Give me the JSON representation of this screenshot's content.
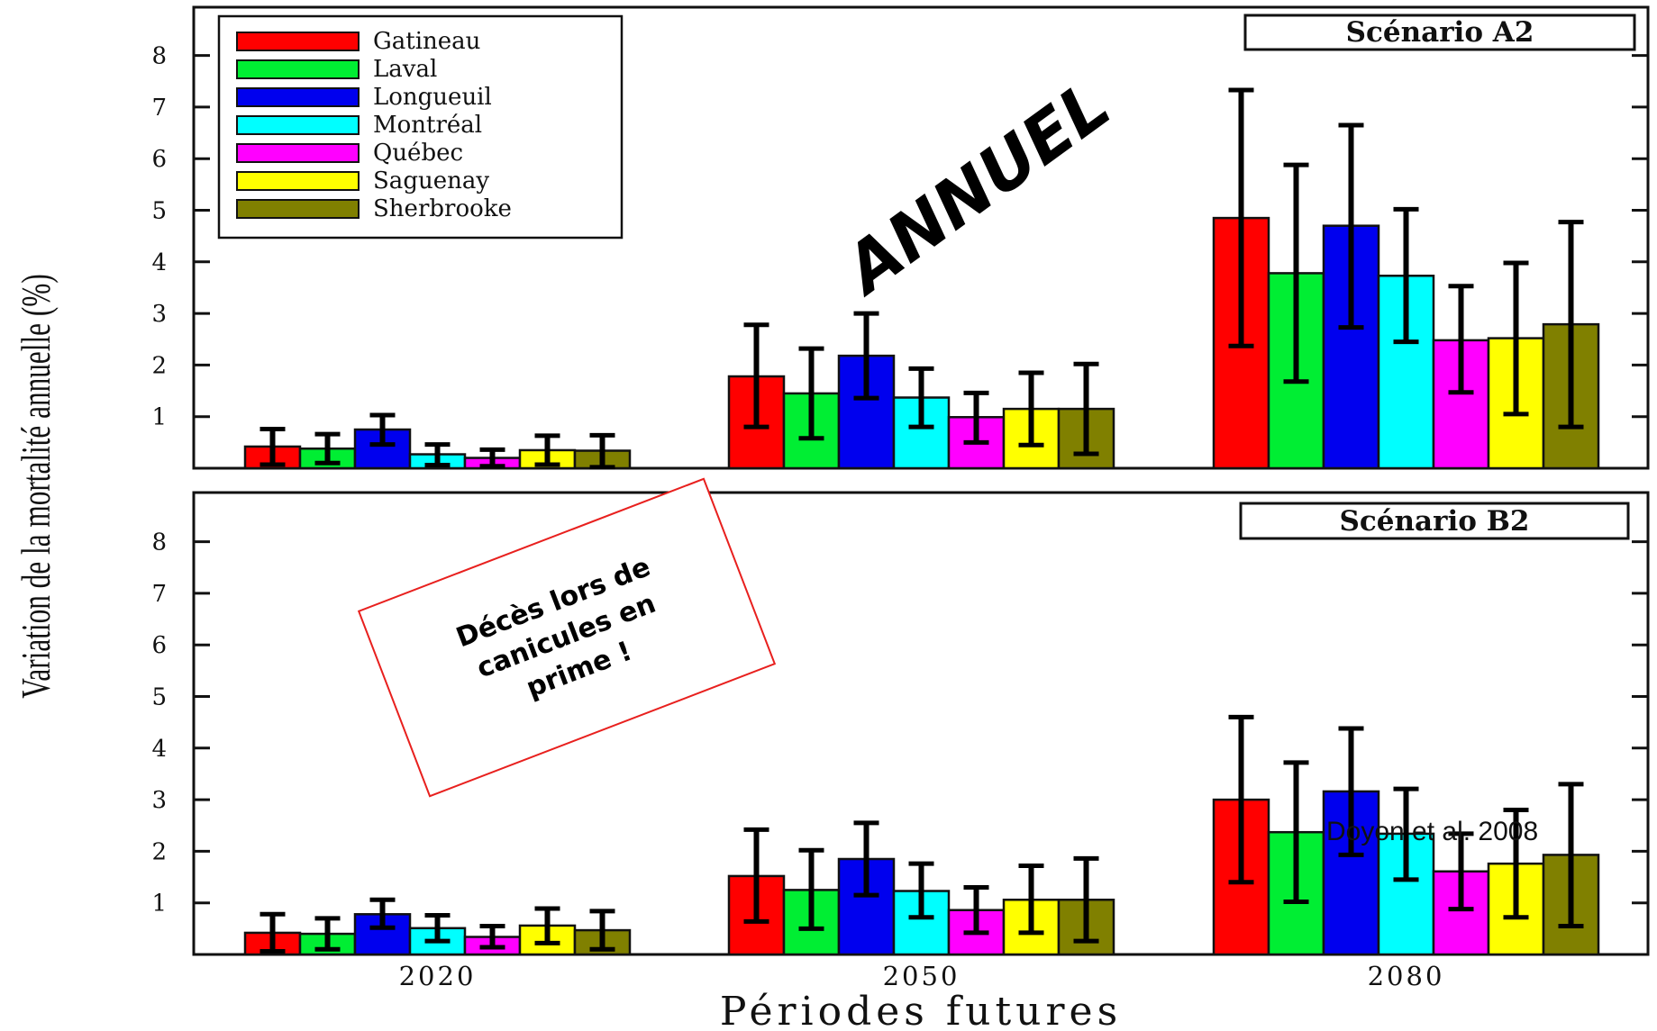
{
  "figure": {
    "ylabel": "Variation de la mortalité annuelle (%)",
    "xlabel": "Périodes futures",
    "overlay_text": "ANNUEL",
    "callout_lines": [
      "Décès lors de",
      "canicules en",
      "prime !"
    ],
    "credit": "Doyon et al. 2008"
  },
  "colors": {
    "Gatineau": "#ff0000",
    "Laval": "#00ee33",
    "Longueuil": "#0000ee",
    "Montréal": "#00ffff",
    "Québec": "#ff00ff",
    "Saguenay": "#ffff00",
    "Sherbrooke": "#808000",
    "callout_border": "#e8201e"
  },
  "chart_data": [
    {
      "type": "bar",
      "title": "Scénario A2",
      "categories": [
        "2020",
        "2050",
        "2080"
      ],
      "yticks": [
        1,
        2,
        3,
        4,
        5,
        6,
        7,
        8
      ],
      "ylim": [
        0,
        9
      ],
      "legend": "top-left",
      "series": [
        {
          "name": "Gatineau",
          "values": [
            0.42,
            1.78,
            4.85
          ],
          "err_low": [
            0.07,
            0.8,
            2.37
          ],
          "err_high": [
            0.76,
            2.78,
            7.33
          ]
        },
        {
          "name": "Laval",
          "values": [
            0.38,
            1.45,
            3.78
          ],
          "err_low": [
            0.1,
            0.58,
            1.68
          ],
          "err_high": [
            0.66,
            2.32,
            5.88
          ]
        },
        {
          "name": "Longueuil",
          "values": [
            0.75,
            2.18,
            4.7
          ],
          "err_low": [
            0.46,
            1.36,
            2.73
          ],
          "err_high": [
            1.03,
            3.0,
            6.65
          ]
        },
        {
          "name": "Montréal",
          "values": [
            0.27,
            1.37,
            3.73
          ],
          "err_low": [
            0.06,
            0.8,
            2.45
          ],
          "err_high": [
            0.46,
            1.93,
            5.02
          ]
        },
        {
          "name": "Québec",
          "values": [
            0.2,
            0.99,
            2.48
          ],
          "err_low": [
            0.04,
            0.5,
            1.47
          ],
          "err_high": [
            0.36,
            1.46,
            3.53
          ]
        },
        {
          "name": "Saguenay",
          "values": [
            0.35,
            1.15,
            2.52
          ],
          "err_low": [
            0.07,
            0.45,
            1.05
          ],
          "err_high": [
            0.63,
            1.85,
            3.98
          ]
        },
        {
          "name": "Sherbrooke",
          "values": [
            0.34,
            1.15,
            2.79
          ],
          "err_low": [
            0.02,
            0.28,
            0.8
          ],
          "err_high": [
            0.64,
            2.02,
            4.77
          ]
        }
      ]
    },
    {
      "type": "bar",
      "title": "Scénario B2",
      "categories": [
        "2020",
        "2050",
        "2080"
      ],
      "yticks": [
        1,
        2,
        3,
        4,
        5,
        6,
        7,
        8
      ],
      "ylim": [
        0,
        9
      ],
      "series": [
        {
          "name": "Gatineau",
          "values": [
            0.42,
            1.52,
            3.0
          ],
          "err_low": [
            0.06,
            0.64,
            1.4
          ],
          "err_high": [
            0.78,
            2.42,
            4.6
          ]
        },
        {
          "name": "Laval",
          "values": [
            0.4,
            1.25,
            2.37
          ],
          "err_low": [
            0.1,
            0.5,
            1.02
          ],
          "err_high": [
            0.7,
            2.02,
            3.72
          ]
        },
        {
          "name": "Longueuil",
          "values": [
            0.78,
            1.85,
            3.16
          ],
          "err_low": [
            0.52,
            1.15,
            1.93
          ],
          "err_high": [
            1.06,
            2.55,
            4.38
          ]
        },
        {
          "name": "Montréal",
          "values": [
            0.51,
            1.23,
            2.34
          ],
          "err_low": [
            0.26,
            0.72,
            1.45
          ],
          "err_high": [
            0.76,
            1.76,
            3.21
          ]
        },
        {
          "name": "Québec",
          "values": [
            0.34,
            0.86,
            1.61
          ],
          "err_low": [
            0.14,
            0.42,
            0.88
          ],
          "err_high": [
            0.55,
            1.3,
            2.34
          ]
        },
        {
          "name": "Saguenay",
          "values": [
            0.56,
            1.06,
            1.76
          ],
          "err_low": [
            0.22,
            0.42,
            0.72
          ],
          "err_high": [
            0.89,
            1.72,
            2.8
          ]
        },
        {
          "name": "Sherbrooke",
          "values": [
            0.47,
            1.06,
            1.93
          ],
          "err_low": [
            0.1,
            0.26,
            0.55
          ],
          "err_high": [
            0.84,
            1.86,
            3.3
          ]
        }
      ]
    }
  ]
}
